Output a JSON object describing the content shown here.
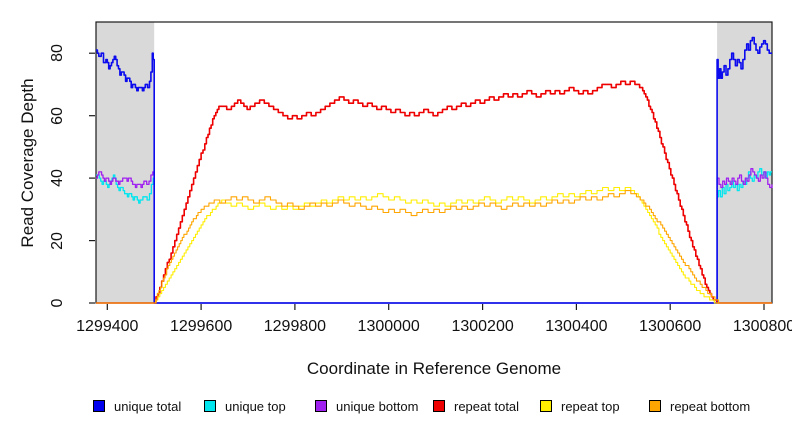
{
  "chart_data": {
    "type": "line",
    "title": "",
    "xlabel": "Coordinate in Reference Genome",
    "ylabel": "Read Coverage Depth",
    "x_range": [
      1299376,
      1300817
    ],
    "y_range": [
      0,
      90
    ],
    "x_ticks": [
      1299400,
      1299600,
      1299800,
      1300000,
      1300200,
      1300400,
      1300600,
      1300800
    ],
    "y_ticks": [
      0,
      20,
      40,
      60,
      80
    ],
    "grid": false,
    "band_color": "#D9D9D9",
    "frame_color": "#1A1A1A",
    "shaded_regions": [
      [
        1299376,
        1299500
      ],
      [
        1300700,
        1300817
      ]
    ],
    "legend_position": "bottom",
    "legend": [
      {
        "label": "unique total",
        "color": "#0000EE"
      },
      {
        "label": "unique top",
        "color": "#00E5EE"
      },
      {
        "label": "unique bottom",
        "color": "#A020F0"
      },
      {
        "label": "repeat total",
        "color": "#EE0000"
      },
      {
        "label": "repeat top",
        "color": "#FFEE00"
      },
      {
        "label": "repeat bottom",
        "color": "#FFA500"
      }
    ],
    "series": [
      {
        "name": "unique top",
        "color": "#00E5EE",
        "width": 1.3,
        "points": [
          1299376,
          41,
          1299383,
          40,
          1299389,
          38,
          1299395,
          39,
          1299401,
          37,
          1299407,
          39,
          1299413,
          41,
          1299419,
          38,
          1299425,
          36,
          1299431,
          37,
          1299437,
          35,
          1299443,
          34,
          1299449,
          35,
          1299455,
          33,
          1299461,
          34,
          1299467,
          32,
          1299473,
          33,
          1299479,
          34,
          1299485,
          33,
          1299490,
          35,
          1299494,
          38,
          1299498,
          40,
          1299500,
          37,
          1299500,
          0,
          1300700,
          0,
          1300700,
          34,
          1300703,
          36,
          1300707,
          34,
          1300711,
          37,
          1300715,
          35,
          1300719,
          38,
          1300723,
          36,
          1300727,
          37,
          1300731,
          39,
          1300735,
          37,
          1300739,
          38,
          1300743,
          36,
          1300747,
          38,
          1300751,
          37,
          1300755,
          39,
          1300759,
          38,
          1300763,
          40,
          1300767,
          42,
          1300771,
          40,
          1300775,
          39,
          1300779,
          41,
          1300783,
          40,
          1300787,
          42,
          1300791,
          43,
          1300795,
          41,
          1300799,
          42,
          1300803,
          40,
          1300807,
          42,
          1300811,
          41,
          1300817,
          42
        ]
      },
      {
        "name": "unique bottom",
        "color": "#A020F0",
        "width": 1.3,
        "points": [
          1299376,
          40,
          1299382,
          42,
          1299388,
          41,
          1299394,
          39,
          1299400,
          40,
          1299406,
          38,
          1299412,
          40,
          1299418,
          39,
          1299424,
          38,
          1299430,
          39,
          1299436,
          40,
          1299442,
          39,
          1299448,
          40,
          1299454,
          38,
          1299460,
          37,
          1299466,
          38,
          1299472,
          37,
          1299478,
          39,
          1299484,
          38,
          1299489,
          39,
          1299493,
          41,
          1299497,
          42,
          1299500,
          39,
          1299500,
          0,
          1300700,
          0,
          1300700,
          40,
          1300704,
          38,
          1300708,
          37,
          1300712,
          39,
          1300716,
          38,
          1300720,
          40,
          1300724,
          39,
          1300728,
          38,
          1300732,
          40,
          1300736,
          39,
          1300740,
          38,
          1300744,
          40,
          1300748,
          41,
          1300752,
          39,
          1300756,
          38,
          1300760,
          40,
          1300764,
          39,
          1300768,
          41,
          1300772,
          43,
          1300776,
          42,
          1300780,
          41,
          1300784,
          40,
          1300788,
          39,
          1300792,
          41,
          1300796,
          40,
          1300800,
          42,
          1300804,
          40,
          1300808,
          38,
          1300812,
          37,
          1300817,
          38
        ]
      },
      {
        "name": "unique total",
        "color": "#0B0BEE",
        "width": 1.6,
        "points": [
          1299376,
          81,
          1299382,
          79,
          1299387,
          80,
          1299392,
          77,
          1299397,
          78,
          1299403,
          75,
          1299409,
          77,
          1299415,
          79,
          1299421,
          76,
          1299427,
          73,
          1299433,
          74,
          1299439,
          71,
          1299445,
          72,
          1299451,
          69,
          1299457,
          70,
          1299463,
          68,
          1299469,
          69,
          1299475,
          68,
          1299481,
          70,
          1299486,
          69,
          1299490,
          71,
          1299493,
          74,
          1299496,
          80,
          1299498,
          78,
          1299500,
          76,
          1299500,
          0,
          1300700,
          0,
          1300700,
          78,
          1300702,
          72,
          1300705,
          75,
          1300708,
          72,
          1300711,
          74,
          1300715,
          76,
          1300719,
          73,
          1300723,
          75,
          1300727,
          78,
          1300731,
          80,
          1300735,
          78,
          1300739,
          76,
          1300743,
          78,
          1300747,
          77,
          1300751,
          75,
          1300755,
          78,
          1300759,
          81,
          1300763,
          83,
          1300767,
          81,
          1300771,
          84,
          1300775,
          85,
          1300779,
          83,
          1300783,
          81,
          1300787,
          80,
          1300791,
          82,
          1300795,
          83,
          1300799,
          84,
          1300803,
          83,
          1300807,
          81,
          1300811,
          80,
          1300817,
          80
        ]
      },
      {
        "name": "repeat total",
        "color": "#EE0000",
        "width": 1.6,
        "points": [
          1299376,
          0,
          1299500,
          0,
          1299512,
          5,
          1299524,
          11,
          1299536,
          16,
          1299548,
          22,
          1299560,
          28,
          1299572,
          34,
          1299584,
          40,
          1299596,
          46,
          1299608,
          51,
          1299618,
          56,
          1299628,
          60,
          1299638,
          63,
          1299648,
          63,
          1299658,
          62,
          1299668,
          63,
          1299678,
          65,
          1299688,
          64,
          1299698,
          62,
          1299708,
          63,
          1299718,
          64,
          1299728,
          65,
          1299738,
          64,
          1299748,
          63,
          1299758,
          62,
          1299768,
          61,
          1299778,
          60,
          1299788,
          59,
          1299798,
          60,
          1299808,
          59,
          1299818,
          60,
          1299828,
          61,
          1299838,
          60,
          1299848,
          61,
          1299858,
          62,
          1299868,
          63,
          1299878,
          64,
          1299888,
          65,
          1299898,
          66,
          1299908,
          65,
          1299918,
          64,
          1299928,
          65,
          1299938,
          64,
          1299948,
          63,
          1299958,
          64,
          1299968,
          63,
          1299978,
          62,
          1299988,
          63,
          1299998,
          62,
          1300008,
          61,
          1300018,
          62,
          1300028,
          61,
          1300038,
          60,
          1300048,
          61,
          1300058,
          60,
          1300068,
          61,
          1300078,
          62,
          1300088,
          61,
          1300098,
          60,
          1300108,
          61,
          1300118,
          62,
          1300128,
          63,
          1300138,
          62,
          1300148,
          63,
          1300158,
          64,
          1300168,
          63,
          1300178,
          64,
          1300188,
          65,
          1300198,
          64,
          1300208,
          65,
          1300218,
          66,
          1300228,
          65,
          1300238,
          66,
          1300248,
          67,
          1300258,
          66,
          1300268,
          67,
          1300278,
          66,
          1300288,
          67,
          1300298,
          68,
          1300308,
          67,
          1300318,
          66,
          1300328,
          67,
          1300338,
          68,
          1300348,
          67,
          1300358,
          68,
          1300368,
          67,
          1300378,
          68,
          1300388,
          69,
          1300398,
          68,
          1300408,
          67,
          1300418,
          68,
          1300428,
          67,
          1300438,
          68,
          1300448,
          69,
          1300458,
          70,
          1300468,
          70,
          1300478,
          69,
          1300488,
          70,
          1300498,
          71,
          1300508,
          70,
          1300518,
          71,
          1300528,
          70,
          1300538,
          69,
          1300548,
          66,
          1300558,
          62,
          1300568,
          58,
          1300578,
          53,
          1300588,
          48,
          1300598,
          43,
          1300608,
          38,
          1300618,
          33,
          1300628,
          28,
          1300638,
          23,
          1300648,
          18,
          1300658,
          14,
          1300668,
          9,
          1300678,
          5,
          1300688,
          2,
          1300699,
          0,
          1300817,
          0
        ]
      },
      {
        "name": "repeat top",
        "color": "#FFEE00",
        "width": 1.1,
        "points": [
          1299376,
          0,
          1299500,
          0,
          1299512,
          3,
          1299524,
          6,
          1299536,
          9,
          1299548,
          12,
          1299560,
          15,
          1299572,
          18,
          1299584,
          21,
          1299596,
          24,
          1299608,
          27,
          1299620,
          29,
          1299632,
          31,
          1299644,
          33,
          1299656,
          32,
          1299668,
          31,
          1299680,
          32,
          1299692,
          31,
          1299704,
          30,
          1299716,
          31,
          1299728,
          32,
          1299740,
          31,
          1299752,
          30,
          1299764,
          31,
          1299776,
          30,
          1299788,
          31,
          1299800,
          30,
          1299812,
          31,
          1299824,
          32,
          1299836,
          31,
          1299848,
          32,
          1299860,
          33,
          1299872,
          32,
          1299884,
          33,
          1299896,
          34,
          1299908,
          33,
          1299920,
          34,
          1299932,
          33,
          1299944,
          34,
          1299956,
          33,
          1299968,
          34,
          1299980,
          35,
          1299992,
          34,
          1300004,
          33,
          1300016,
          34,
          1300028,
          33,
          1300040,
          32,
          1300052,
          33,
          1300064,
          32,
          1300076,
          33,
          1300088,
          32,
          1300100,
          31,
          1300112,
          32,
          1300124,
          31,
          1300136,
          32,
          1300148,
          33,
          1300160,
          32,
          1300172,
          33,
          1300184,
          32,
          1300196,
          33,
          1300208,
          34,
          1300220,
          33,
          1300232,
          32,
          1300244,
          33,
          1300256,
          34,
          1300268,
          33,
          1300280,
          34,
          1300292,
          33,
          1300304,
          32,
          1300316,
          33,
          1300328,
          34,
          1300340,
          33,
          1300352,
          34,
          1300364,
          35,
          1300376,
          34,
          1300388,
          35,
          1300400,
          34,
          1300412,
          35,
          1300424,
          36,
          1300436,
          35,
          1300448,
          36,
          1300460,
          37,
          1300472,
          36,
          1300484,
          37,
          1300496,
          36,
          1300508,
          37,
          1300520,
          36,
          1300532,
          34,
          1300544,
          31,
          1300556,
          28,
          1300568,
          25,
          1300580,
          21,
          1300592,
          18,
          1300604,
          15,
          1300616,
          12,
          1300628,
          9,
          1300640,
          7,
          1300652,
          5,
          1300664,
          3,
          1300676,
          2,
          1300688,
          1,
          1300694,
          0,
          1300817,
          0
        ]
      },
      {
        "name": "repeat bottom",
        "color": "#FFA500",
        "width": 1.1,
        "points": [
          1299376,
          0,
          1299500,
          0,
          1299510,
          4,
          1299520,
          8,
          1299530,
          12,
          1299540,
          15,
          1299550,
          18,
          1299560,
          21,
          1299570,
          23,
          1299580,
          26,
          1299590,
          28,
          1299600,
          30,
          1299610,
          31,
          1299620,
          32,
          1299632,
          33,
          1299644,
          32,
          1299656,
          33,
          1299668,
          34,
          1299680,
          33,
          1299692,
          34,
          1299704,
          33,
          1299716,
          32,
          1299728,
          33,
          1299740,
          34,
          1299752,
          33,
          1299764,
          32,
          1299776,
          31,
          1299788,
          32,
          1299800,
          31,
          1299812,
          30,
          1299824,
          31,
          1299836,
          32,
          1299848,
          31,
          1299860,
          32,
          1299872,
          31,
          1299884,
          32,
          1299896,
          33,
          1299908,
          32,
          1299920,
          31,
          1299932,
          32,
          1299944,
          31,
          1299956,
          30,
          1299968,
          31,
          1299980,
          30,
          1299992,
          29,
          1300004,
          30,
          1300016,
          29,
          1300028,
          30,
          1300040,
          29,
          1300052,
          28,
          1300064,
          29,
          1300076,
          30,
          1300088,
          29,
          1300100,
          30,
          1300112,
          29,
          1300124,
          30,
          1300136,
          31,
          1300148,
          30,
          1300160,
          31,
          1300172,
          30,
          1300184,
          31,
          1300196,
          32,
          1300208,
          31,
          1300220,
          32,
          1300232,
          31,
          1300244,
          30,
          1300256,
          31,
          1300268,
          32,
          1300280,
          31,
          1300292,
          32,
          1300304,
          31,
          1300316,
          32,
          1300328,
          31,
          1300340,
          32,
          1300352,
          33,
          1300364,
          32,
          1300376,
          33,
          1300388,
          32,
          1300400,
          33,
          1300412,
          34,
          1300424,
          33,
          1300436,
          34,
          1300448,
          33,
          1300460,
          34,
          1300472,
          35,
          1300484,
          34,
          1300496,
          35,
          1300508,
          36,
          1300520,
          35,
          1300532,
          34,
          1300544,
          32,
          1300556,
          30,
          1300568,
          27,
          1300580,
          25,
          1300592,
          22,
          1300604,
          19,
          1300616,
          16,
          1300628,
          13,
          1300640,
          11,
          1300652,
          8,
          1300664,
          6,
          1300676,
          4,
          1300688,
          2,
          1300703,
          0,
          1300817,
          0
        ]
      }
    ]
  }
}
